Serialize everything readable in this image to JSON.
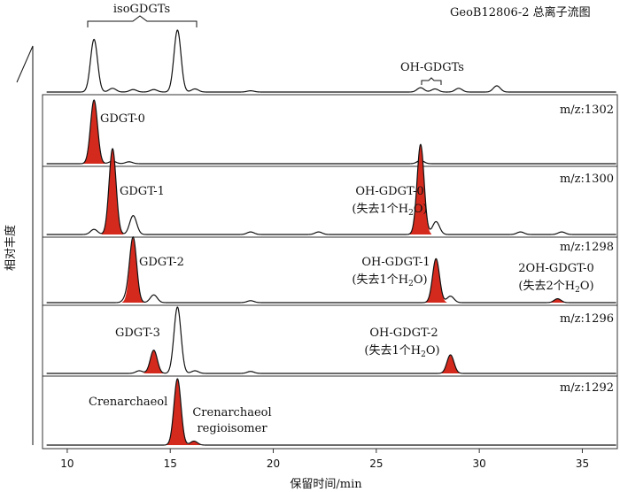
{
  "chart_data": {
    "type": "line",
    "title": "GeoB12806-2 总离子流图",
    "xlabel": "保留时间/min",
    "ylabel": "相对丰度",
    "xlim": [
      8.8,
      36.7
    ],
    "xticks": [
      "10",
      "15",
      "20",
      "25",
      "30",
      "35"
    ],
    "panels": [
      {
        "label": "",
        "peaks": [
          [
            11.3,
            0.85
          ],
          [
            12.2,
            0.06
          ],
          [
            13.2,
            0.04
          ],
          [
            14.2,
            0.04
          ],
          [
            15.35,
            1.0
          ],
          [
            16.2,
            0.05
          ],
          [
            18.9,
            0.02
          ],
          [
            27.15,
            0.07
          ],
          [
            27.85,
            0.05
          ],
          [
            29.0,
            0.06
          ],
          [
            30.85,
            0.1
          ]
        ],
        "filled": [],
        "annotations": [
          {
            "text": "isoGDGTs",
            "x": 13.5
          },
          {
            "text": "OH-GDGTs",
            "x": 27.4
          }
        ]
      },
      {
        "label": "m/z:1302",
        "peaks": [
          [
            11.3,
            1.0
          ],
          [
            12.2,
            0.04
          ],
          [
            13.0,
            0.03
          ],
          [
            27.15,
            0.05
          ]
        ],
        "filled": [
          [
            11.3,
            1.0
          ]
        ],
        "annotations": [
          {
            "text": "GDGT-0"
          }
        ]
      },
      {
        "label": "m/z:1300",
        "peaks": [
          [
            11.3,
            0.06
          ],
          [
            12.2,
            1.0
          ],
          [
            13.2,
            0.22
          ],
          [
            18.9,
            0.03
          ],
          [
            22.2,
            0.03
          ],
          [
            27.15,
            1.05
          ],
          [
            27.9,
            0.15
          ],
          [
            32.0,
            0.03
          ],
          [
            34.0,
            0.03
          ]
        ],
        "filled": [
          [
            12.2,
            1.0
          ],
          [
            27.15,
            1.05
          ]
        ],
        "annotations": [
          {
            "text": "GDGT-1"
          },
          {
            "text": "OH-GDGT-0"
          },
          {
            "text": "(失去1个",
            "sub": "2",
            "tail": "O)"
          }
        ]
      },
      {
        "label": "m/z:1298",
        "peaks": [
          [
            12.9,
            0.08
          ],
          [
            13.2,
            1.0
          ],
          [
            14.2,
            0.12
          ],
          [
            18.9,
            0.03
          ],
          [
            27.9,
            0.68
          ],
          [
            28.6,
            0.1
          ],
          [
            33.8,
            0.06
          ]
        ],
        "filled": [
          [
            13.2,
            1.0
          ],
          [
            27.9,
            0.68
          ],
          [
            33.8,
            0.06
          ]
        ],
        "annotations": [
          {
            "text": "GDGT-2"
          },
          {
            "text": "OH-GDGT-1"
          },
          {
            "text": "(失去1个",
            "sub": "2",
            "tail": "O)"
          },
          {
            "text": "2OH-GDGT-0"
          },
          {
            "text": "(失去2个",
            "sub": "2",
            "tail": "O)"
          }
        ]
      },
      {
        "label": "m/z:1296",
        "peaks": [
          [
            13.5,
            0.04
          ],
          [
            14.2,
            0.35
          ],
          [
            15.35,
            1.0
          ],
          [
            16.2,
            0.04
          ],
          [
            18.9,
            0.03
          ],
          [
            28.6,
            0.28
          ]
        ],
        "filled": [
          [
            14.2,
            0.35
          ],
          [
            28.6,
            0.28
          ]
        ],
        "annotations": [
          {
            "text": "GDGT-3"
          },
          {
            "text": "OH-GDGT-2"
          },
          {
            "text": "(失去1个",
            "sub": "2",
            "tail": "O)"
          }
        ]
      },
      {
        "label": "m/z:1292",
        "peaks": [
          [
            15.35,
            1.0
          ],
          [
            16.15,
            0.06
          ]
        ],
        "filled": [
          [
            15.35,
            1.0
          ],
          [
            16.15,
            0.06
          ]
        ],
        "annotations": [
          {
            "text": "Crenarchaeol"
          },
          {
            "text": "Crenarchaeol"
          },
          {
            "text": "regioisomer"
          }
        ]
      }
    ]
  },
  "colors": {
    "line": "#111111",
    "fill": "#d42a1e",
    "frame": "#333333"
  },
  "chem": {
    "h": "H"
  }
}
